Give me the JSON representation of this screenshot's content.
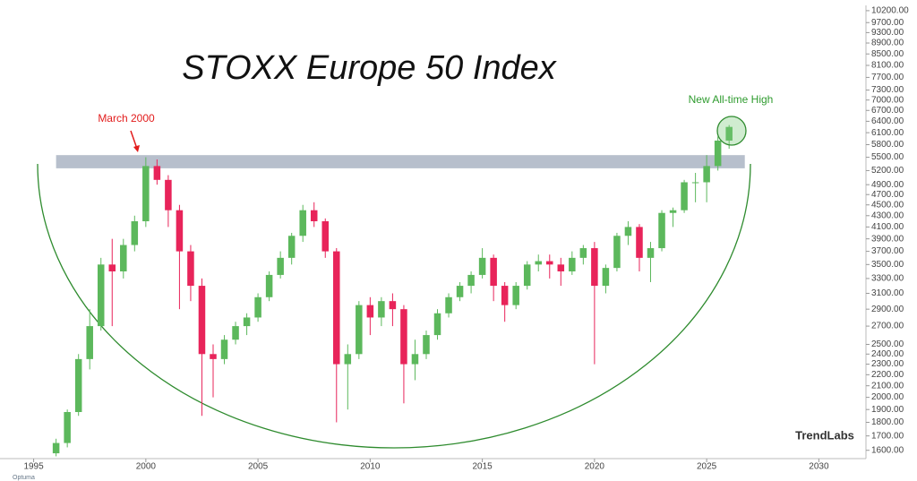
{
  "chart_data": {
    "type": "candlestick",
    "title": "STOXX Europe 50 Index",
    "annotations": {
      "peak": "March 2000",
      "high": "New All-time High"
    },
    "logo": "TrendLabs",
    "watermark": "Optuma",
    "log_scale": true,
    "grid": false,
    "up_color": "#5cb85c",
    "down_color": "#e8245a",
    "x": [
      1996.0,
      1996.5,
      1997.0,
      1997.5,
      1998.0,
      1998.5,
      1999.0,
      1999.5,
      2000.0,
      2000.5,
      2001.0,
      2001.5,
      2002.0,
      2002.5,
      2003.0,
      2003.5,
      2004.0,
      2004.5,
      2005.0,
      2005.5,
      2006.0,
      2006.5,
      2007.0,
      2007.5,
      2008.0,
      2008.5,
      2009.0,
      2009.5,
      2010.0,
      2010.5,
      2011.0,
      2011.5,
      2012.0,
      2012.5,
      2013.0,
      2013.5,
      2014.0,
      2014.5,
      2015.0,
      2015.5,
      2016.0,
      2016.5,
      2017.0,
      2017.5,
      2018.0,
      2018.5,
      2019.0,
      2019.5,
      2020.0,
      2020.5,
      2021.0,
      2021.5,
      2022.0,
      2022.5,
      2023.0,
      2023.5,
      2024.0,
      2024.5,
      2025.0,
      2025.5,
      2026.0
    ],
    "open": [
      1580,
      1650,
      1880,
      2350,
      2700,
      3500,
      3400,
      3800,
      4200,
      5300,
      5000,
      4400,
      3700,
      3200,
      2400,
      2350,
      2550,
      2700,
      2800,
      3050,
      3350,
      3600,
      3950,
      4400,
      4200,
      3700,
      2300,
      2400,
      2950,
      2800,
      3000,
      2900,
      2300,
      2400,
      2600,
      2850,
      3050,
      3200,
      3350,
      3600,
      3200,
      2950,
      3200,
      3500,
      3550,
      3500,
      3400,
      3600,
      3750,
      3200,
      3450,
      3950,
      4100,
      3600,
      3750,
      4350,
      4400,
      4950,
      4950,
      5300,
      5900
    ],
    "high": [
      1680,
      1900,
      2400,
      2900,
      3600,
      3900,
      3900,
      4300,
      5500,
      5450,
      5100,
      4500,
      3800,
      3300,
      2500,
      2600,
      2750,
      2850,
      3100,
      3400,
      3700,
      4000,
      4500,
      4550,
      4250,
      3750,
      2500,
      3000,
      3050,
      3050,
      3100,
      2950,
      2550,
      2650,
      2900,
      3100,
      3250,
      3400,
      3750,
      3650,
      3250,
      3250,
      3550,
      3650,
      3650,
      3600,
      3700,
      3800,
      3850,
      3500,
      4000,
      4200,
      4150,
      3850,
      4400,
      4450,
      5000,
      5150,
      5550,
      6000,
      6300
    ],
    "low": [
      1560,
      1620,
      1850,
      2250,
      2650,
      2700,
      3300,
      3700,
      4100,
      4900,
      4100,
      2900,
      3000,
      1850,
      2000,
      2300,
      2500,
      2600,
      2750,
      3000,
      3300,
      3500,
      3850,
      4100,
      3600,
      1800,
      1900,
      2350,
      2600,
      2700,
      2700,
      1950,
      2150,
      2350,
      2550,
      2800,
      3000,
      3100,
      3300,
      3000,
      2750,
      2900,
      3150,
      3400,
      3300,
      3200,
      3350,
      3500,
      2300,
      3100,
      3400,
      3800,
      3400,
      3250,
      3700,
      4100,
      4350,
      4550,
      4550,
      5200,
      5700
    ],
    "close": [
      1650,
      1880,
      2350,
      2700,
      3500,
      3400,
      3800,
      4200,
      5300,
      5000,
      4400,
      3700,
      3200,
      2400,
      2350,
      2550,
      2700,
      2800,
      3050,
      3350,
      3600,
      3950,
      4400,
      4200,
      3700,
      2300,
      2400,
      2950,
      2800,
      3000,
      2900,
      2300,
      2400,
      2600,
      2850,
      3050,
      3200,
      3350,
      3600,
      3200,
      2950,
      3200,
      3500,
      3550,
      3500,
      3400,
      3600,
      3750,
      3200,
      3450,
      3950,
      4100,
      3600,
      3750,
      4350,
      4400,
      4950,
      4950,
      5300,
      5900,
      6250
    ],
    "band": {
      "ylim": [
        5250,
        5550
      ],
      "xlim": [
        1996.0,
        2026.7
      ]
    },
    "xlim": [
      1993.5,
      2032.1
    ],
    "xticks": [
      1995,
      2000,
      2005,
      2010,
      2015,
      2020,
      2025,
      2030
    ],
    "ylim": [
      1545,
      10430
    ],
    "yticks": [
      {
        "value": 10200,
        "label": "10200.00"
      },
      {
        "value": 9700,
        "label": "9700.00"
      },
      {
        "value": 9300,
        "label": "9300.00"
      },
      {
        "value": 8900,
        "label": "8900.00"
      },
      {
        "value": 8500,
        "label": "8500.00"
      },
      {
        "value": 8100,
        "label": "8100.00"
      },
      {
        "value": 7700,
        "label": "7700.00"
      },
      {
        "value": 7300,
        "label": "7300.00"
      },
      {
        "value": 7000,
        "label": "7000.00"
      },
      {
        "value": 6700,
        "label": "6700.00"
      },
      {
        "value": 6400,
        "label": "6400.00"
      },
      {
        "value": 6100,
        "label": "6100.00"
      },
      {
        "value": 5800,
        "label": "5800.00"
      },
      {
        "value": 5500,
        "label": "5500.00"
      },
      {
        "value": 5200,
        "label": "5200.00"
      },
      {
        "value": 4900,
        "label": "4900.00"
      },
      {
        "value": 4700,
        "label": "4700.00"
      },
      {
        "value": 4500,
        "label": "4500.00"
      },
      {
        "value": 4300,
        "label": "4300.00"
      },
      {
        "value": 4100,
        "label": "4100.00"
      },
      {
        "value": 3900,
        "label": "3900.00"
      },
      {
        "value": 3700,
        "label": "3700.00"
      },
      {
        "value": 3500,
        "label": "3500.00"
      },
      {
        "value": 3300,
        "label": "3300.00"
      },
      {
        "value": 3100,
        "label": "3100.00"
      },
      {
        "value": 2900,
        "label": "2900.00"
      },
      {
        "value": 2700,
        "label": "2700.00"
      },
      {
        "value": 2500,
        "label": "2500.00"
      },
      {
        "value": 2400,
        "label": "2400.00"
      },
      {
        "value": 2300,
        "label": "2300.00"
      },
      {
        "value": 2200,
        "label": "2200.00"
      },
      {
        "value": 2100,
        "label": "2100.00"
      },
      {
        "value": 2000,
        "label": "2000.00"
      },
      {
        "value": 1900,
        "label": "1900.00"
      },
      {
        "value": 1800,
        "label": "1800.00"
      },
      {
        "value": 1700,
        "label": "1700.00"
      },
      {
        "value": 1600,
        "label": "1600.00"
      }
    ]
  }
}
